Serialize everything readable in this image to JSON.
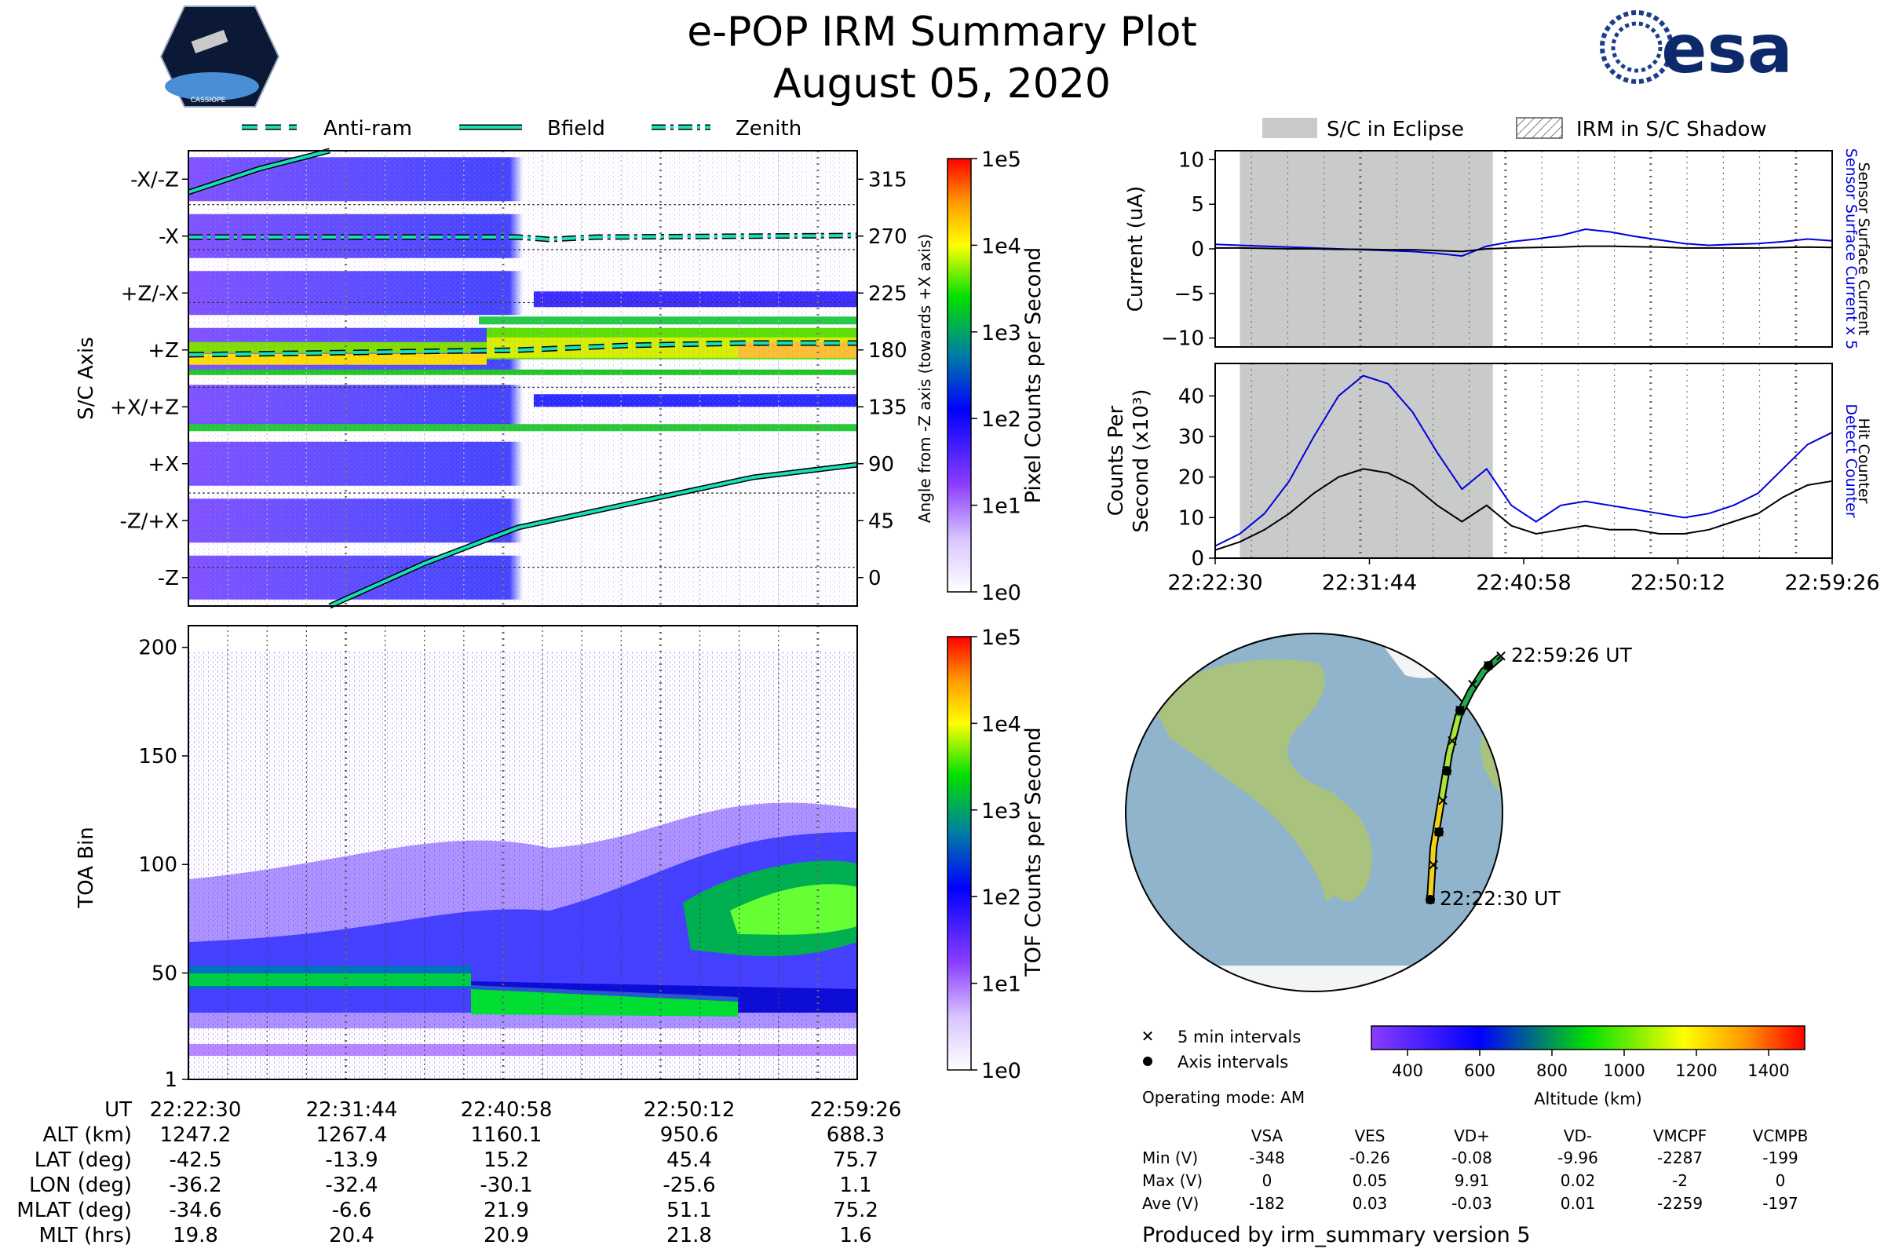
{
  "header": {
    "title": "e-POP IRM Summary Plot",
    "subtitle": "August 05, 2020",
    "mission_badge": "CASSIOPE",
    "agency_logo": "esa"
  },
  "colors": {
    "trace_line": "#17e0b8",
    "eclipse_fill": "#c8cbc9",
    "blue": "#0000dd",
    "black": "#000000",
    "ocean": "#8fb4cc",
    "land": "#a9c27e",
    "ice": "#f2f4f5"
  },
  "legend_top": {
    "items": [
      "Anti-ram",
      "Bfield",
      "Zenith"
    ]
  },
  "legend_right": {
    "items": [
      "S/C in Eclipse",
      "IRM in S/C Shadow"
    ]
  },
  "panel_axis": {
    "ylabel": "S/C Axis",
    "ylabel_right": "Angle from -Z axis (towards +X axis)",
    "axis_labels": [
      "-X/-Z",
      "-X",
      "+Z/-X",
      "+Z",
      "+X/+Z",
      "+X",
      "-Z/+X",
      "-Z"
    ],
    "angle_ticks": [
      "315",
      "270",
      "225",
      "180",
      "135",
      "90",
      "45",
      "0"
    ],
    "cbar_label": "Pixel Counts per Second",
    "cbar_ticks": [
      "1e5",
      "1e4",
      "1e3",
      "1e2",
      "1e1",
      "1e0"
    ]
  },
  "panel_toa": {
    "ylabel": "TOA Bin",
    "yticks": [
      "200",
      "150",
      "100",
      "50",
      "1"
    ],
    "cbar_label": "TOF Counts per Second",
    "cbar_ticks": [
      "1e5",
      "1e4",
      "1e3",
      "1e2",
      "1e1",
      "1e0"
    ]
  },
  "orbit_table": {
    "rows": [
      {
        "label": "UT",
        "values": [
          "22:22:30",
          "22:31:44",
          "22:40:58",
          "22:50:12",
          "22:59:26"
        ]
      },
      {
        "label": "ALT (km)",
        "values": [
          "1247.2",
          "1267.4",
          "1160.1",
          "950.6",
          "688.3"
        ]
      },
      {
        "label": "LAT (deg)",
        "values": [
          "-42.5",
          "-13.9",
          "15.2",
          "45.4",
          "75.7"
        ]
      },
      {
        "label": "LON (deg)",
        "values": [
          "-36.2",
          "-32.4",
          "-30.1",
          "-25.6",
          "1.1"
        ]
      },
      {
        "label": "MLAT (deg)",
        "values": [
          "-34.6",
          "-6.6",
          "21.9",
          "51.1",
          "75.2"
        ]
      },
      {
        "label": "MLT (hrs)",
        "values": [
          "19.8",
          "20.4",
          "20.9",
          "21.8",
          "1.6"
        ]
      }
    ]
  },
  "chart_data": [
    {
      "type": "line",
      "title": "Sensor surface current",
      "ylabel": "Current (uA)",
      "ylim": [
        -11,
        11
      ],
      "yticks": [
        "10",
        "5",
        "0",
        "−5",
        "−10"
      ],
      "xlabels": [
        "22:22:30",
        "22:31:44",
        "22:40:58",
        "22:50:12",
        "22:59:26"
      ],
      "eclipse_range": [
        0.04,
        0.45
      ],
      "right_labels": {
        "blue": "Sensor Surface Current x 5",
        "black": "Sensor Surface Current"
      },
      "series": [
        {
          "name": "Sensor Surface Current x 5",
          "color": "blue",
          "values": [
            0.5,
            0.4,
            0.3,
            0.2,
            0.1,
            0,
            -0.1,
            -0.2,
            -0.3,
            -0.5,
            -0.8,
            0.3,
            0.8,
            1.1,
            1.5,
            2.2,
            1.9,
            1.4,
            1.0,
            0.6,
            0.4,
            0.5,
            0.6,
            0.8,
            1.1,
            0.9
          ]
        },
        {
          "name": "Sensor Surface Current",
          "color": "black",
          "values": [
            0.1,
            0.1,
            0.05,
            0,
            0,
            -0.05,
            -0.05,
            -0.1,
            -0.1,
            -0.2,
            -0.3,
            0,
            0.1,
            0.15,
            0.2,
            0.3,
            0.3,
            0.25,
            0.2,
            0.1,
            0.1,
            0.1,
            0.1,
            0.15,
            0.2,
            0.15
          ]
        }
      ]
    },
    {
      "type": "line",
      "title": "Detect counter",
      "ylabel": "Counts Per Second (x10³)",
      "ylim": [
        0,
        48
      ],
      "yticks": [
        "40",
        "30",
        "20",
        "10",
        "0"
      ],
      "xlabels": [
        "22:22:30",
        "22:31:44",
        "22:40:58",
        "22:50:12",
        "22:59:26"
      ],
      "eclipse_range": [
        0.04,
        0.45
      ],
      "right_labels": {
        "blue": "Detect Counter",
        "black": "Hit Counter"
      },
      "series": [
        {
          "name": "Detect Counter",
          "color": "blue",
          "values": [
            3,
            6,
            11,
            19,
            30,
            40,
            45,
            43,
            36,
            26,
            17,
            22,
            13,
            9,
            13,
            14,
            13,
            12,
            11,
            10,
            11,
            13,
            16,
            22,
            28,
            31
          ]
        },
        {
          "name": "Hit Counter",
          "color": "black",
          "values": [
            2,
            4,
            7,
            11,
            16,
            20,
            22,
            21,
            18,
            13,
            9,
            13,
            8,
            6,
            7,
            8,
            7,
            7,
            6,
            6,
            7,
            9,
            11,
            15,
            18,
            19
          ]
        }
      ]
    }
  ],
  "map": {
    "start_label": "22:22:30 UT",
    "end_label": "22:59:26 UT",
    "legend_cross": "5 min intervals",
    "legend_dot": "Axis intervals",
    "cbar_label": "Altitude (km)",
    "cbar_ticks": [
      "400",
      "600",
      "800",
      "1000",
      "1200",
      "1400"
    ],
    "operating_mode": "Operating mode: AM"
  },
  "voltage_table": {
    "columns": [
      "VSA",
      "VES",
      "VD+",
      "VD-",
      "VMCPF",
      "VCMPB"
    ],
    "rows": [
      {
        "label": "Min (V)",
        "values": [
          "-348",
          "-0.26",
          "-0.08",
          "-9.96",
          "-2287",
          "-199"
        ]
      },
      {
        "label": "Max (V)",
        "values": [
          "0",
          "0.05",
          "9.91",
          "0.02",
          "-2",
          "0"
        ]
      },
      {
        "label": "Ave (V)",
        "values": [
          "-182",
          "0.03",
          "-0.03",
          "0.01",
          "-2259",
          "-197"
        ]
      }
    ]
  },
  "footer": "Produced by irm_summary version 5"
}
